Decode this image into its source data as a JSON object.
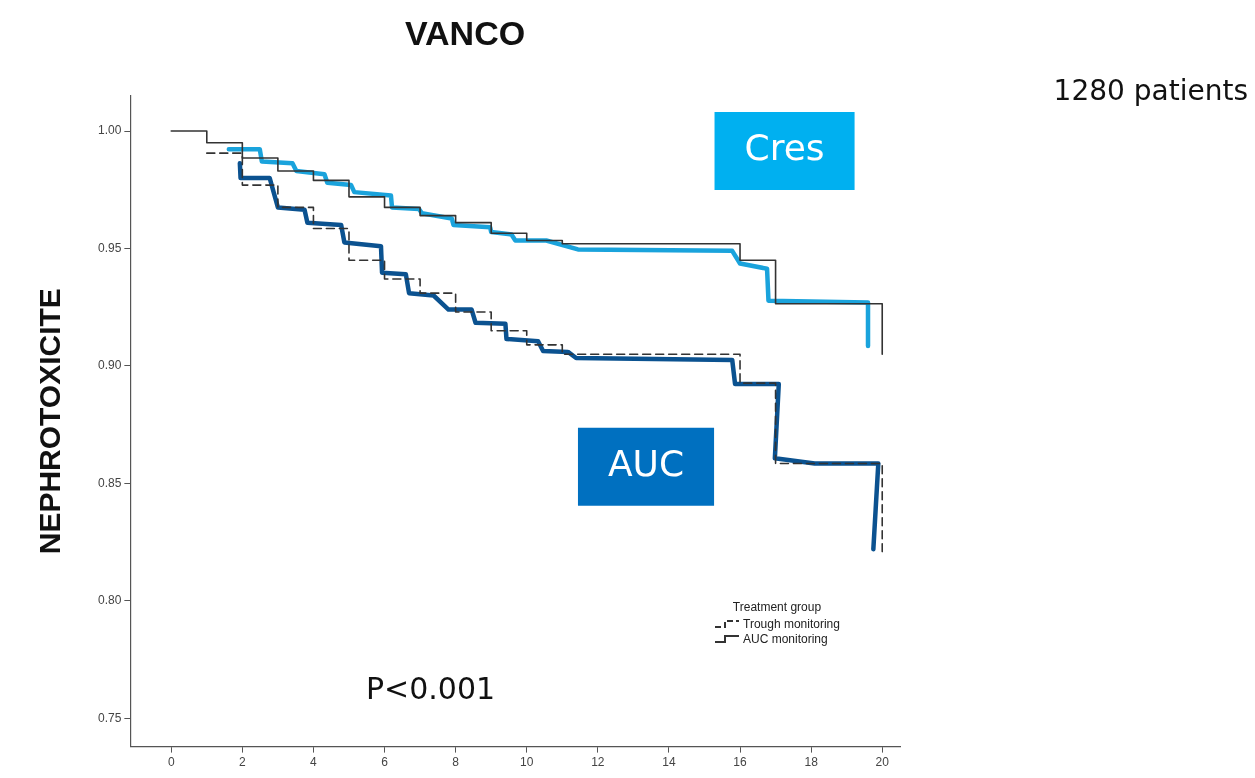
{
  "chart_data": {
    "type": "line",
    "title": "VANCO",
    "ylabel": "NEPHROTOXICITE",
    "legend_title": "Treatment group",
    "xlim": [
      -1.15,
      20.5
    ],
    "xticks": [
      0,
      2,
      4,
      6,
      8,
      10,
      12,
      14,
      16,
      18,
      20
    ],
    "ylim": [
      0.738,
      1.015
    ],
    "yticks": [
      {
        "value": 0.75,
        "label": "0.75"
      },
      {
        "value": 0.8,
        "label": "0.80"
      },
      {
        "value": 0.85,
        "label": "0.85"
      },
      {
        "value": 0.9,
        "label": "0.90"
      },
      {
        "value": 0.95,
        "label": "0.95"
      },
      {
        "value": 1.0,
        "label": "1.00"
      }
    ],
    "grid": false,
    "legend": "bottom right",
    "marker": "none",
    "series": [
      {
        "name": "Trough monitoring",
        "type": "step",
        "line_style": "dashed",
        "color": "#333333",
        "x": [
          1,
          2,
          3,
          4,
          5,
          6,
          7,
          8,
          9,
          10,
          11,
          16,
          17,
          20,
          20
        ],
        "values": [
          0.9906,
          0.977,
          0.9675,
          0.9585,
          0.945,
          0.937,
          0.931,
          0.923,
          0.915,
          0.909,
          0.905,
          0.8927,
          0.8585,
          0.8585,
          0.821
        ]
      },
      {
        "name": "AUC monitoring",
        "type": "step",
        "line_style": "solid",
        "color": "#333333",
        "x": [
          0,
          1,
          2,
          3,
          4,
          5,
          6,
          7,
          8,
          9,
          10,
          11,
          16,
          17,
          20,
          20
        ],
        "values": [
          1.0,
          0.995,
          0.9885,
          0.983,
          0.979,
          0.972,
          0.9675,
          0.964,
          0.961,
          0.9565,
          0.9534,
          0.952,
          0.945,
          0.9265,
          0.9265,
          0.905
        ]
      },
      {
        "type": "line",
        "line_style": "solid",
        "color": "#1aa3dc",
        "x": [
          1.62,
          2.49,
          2.55,
          3.41,
          3.52,
          4.31,
          4.39,
          5.06,
          5.15,
          6.18,
          6.21,
          6.97,
          7.05,
          7.89,
          7.94,
          8.97,
          9.0,
          9.57,
          9.68,
          10.55,
          11.44,
          15.78,
          16.0,
          16.76,
          16.8,
          19.6,
          19.6
        ],
        "values": [
          0.9923,
          0.9923,
          0.987,
          0.9863,
          0.983,
          0.9816,
          0.978,
          0.977,
          0.974,
          0.9726,
          0.9675,
          0.9668,
          0.965,
          0.9628,
          0.96,
          0.959,
          0.957,
          0.956,
          0.9534,
          0.9534,
          0.9496,
          0.949,
          0.9436,
          0.9414,
          0.9278,
          0.927,
          0.9085
        ]
      },
      {
        "type": "line",
        "line_style": "solid",
        "color": "#0b5290",
        "x": [
          1.93,
          1.95,
          2.77,
          3.0,
          3.75,
          3.83,
          4.78,
          4.87,
          5.9,
          5.93,
          6.6,
          6.69,
          7.38,
          7.8,
          8.45,
          8.56,
          9.4,
          9.43,
          10.32,
          10.46,
          11.16,
          11.39,
          15.78,
          15.86,
          17.09,
          16.98,
          18.1,
          19.89,
          19.75
        ],
        "values": [
          0.9863,
          0.98,
          0.98,
          0.9675,
          0.9665,
          0.961,
          0.96,
          0.9526,
          0.951,
          0.9397,
          0.939,
          0.931,
          0.93,
          0.924,
          0.924,
          0.9184,
          0.918,
          0.9115,
          0.9105,
          0.9064,
          0.906,
          0.9034,
          0.9026,
          0.8923,
          0.8923,
          0.8607,
          0.8585,
          0.8585,
          0.822
        ]
      }
    ],
    "annotations": [
      "1280 patients",
      "P<0.001",
      "Cres",
      "AUC"
    ]
  }
}
